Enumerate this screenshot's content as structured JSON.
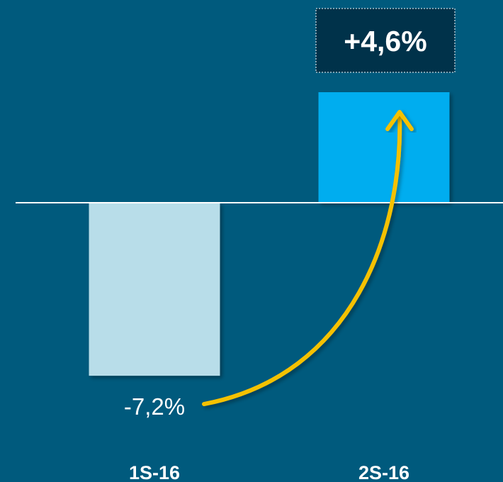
{
  "chart_data": {
    "type": "bar",
    "categories": [
      "1S-16",
      "2S-16"
    ],
    "values": [
      -7.2,
      4.6
    ],
    "data_labels": [
      "-7,2%",
      "+4,6%"
    ],
    "ylim": [
      -10,
      7
    ],
    "grid": false,
    "legend": "none",
    "annotation": "curved arrow from 1S-16 value to 2S-16 bar"
  },
  "colors": {
    "background": "#005a7d",
    "bar_negative": "#b8dde9",
    "bar_positive": "#00adef",
    "arrow": "#f5c100",
    "label_box": "#00324a",
    "baseline": "#ffffff"
  }
}
